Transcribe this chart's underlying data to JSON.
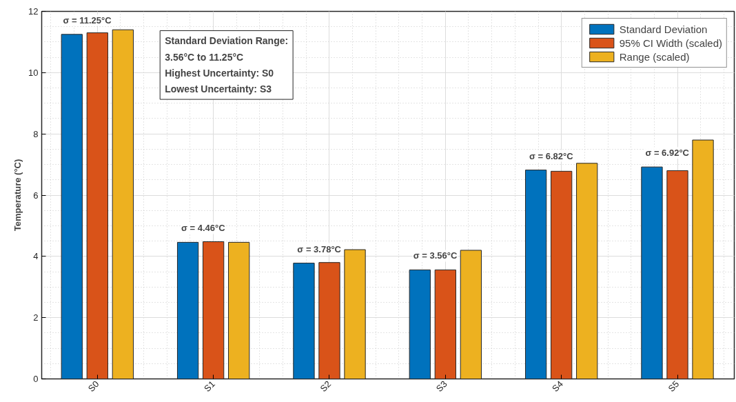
{
  "chart_data": {
    "type": "bar",
    "ylabel": "Temperature (°C)",
    "categories": [
      "S0",
      "S1",
      "S2",
      "S3",
      "S4",
      "S5"
    ],
    "series": [
      {
        "name": "Standard Deviation",
        "color": "#0072bd",
        "values": [
          11.25,
          4.46,
          3.78,
          3.56,
          6.82,
          6.92
        ],
        "value_labels": [
          "σ = 11.25°C",
          "σ = 4.46°C",
          "σ = 3.78°C",
          "σ = 3.56°C",
          "σ = 6.82°C",
          "σ = 6.92°C"
        ]
      },
      {
        "name": "95% CI Width (scaled)",
        "color": "#d95319",
        "values": [
          11.3,
          4.48,
          3.8,
          3.56,
          6.78,
          6.8
        ]
      },
      {
        "name": "Range (scaled)",
        "color": "#edb120",
        "values": [
          11.4,
          4.46,
          4.22,
          4.2,
          7.04,
          7.8
        ]
      }
    ],
    "ylim": [
      0,
      12
    ],
    "yticks": [
      0,
      2,
      4,
      6,
      8,
      10,
      12
    ],
    "grid": true,
    "legend": "top right",
    "annotations": [
      "Standard Deviation Range:",
      "3.56°C to 11.25°C",
      "Highest Uncertainty: S0",
      "Lowest Uncertainty: S3"
    ]
  }
}
